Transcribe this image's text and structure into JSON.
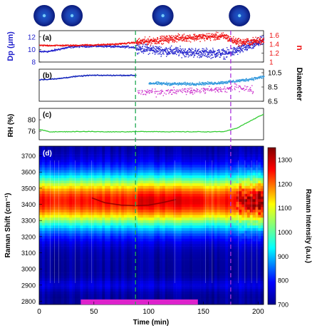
{
  "chart_data": [
    {
      "panel": "a",
      "type": "scatter",
      "panel_label": "(a)",
      "ylabel_left": "Dp (μm)",
      "ylabel_right": "n",
      "left_ticks": [
        "8",
        "10",
        "12"
      ],
      "right_ticks": [
        "1",
        "1.2",
        "1.4",
        "1.6"
      ],
      "ylim_left": [
        8,
        13
      ],
      "ylim_right": [
        1.0,
        1.7
      ],
      "series": [
        {
          "color": "#2222cc",
          "axis": "left",
          "x": [
            0,
            10,
            20,
            30,
            40,
            50,
            60,
            70,
            80,
            88,
            100,
            110,
            120,
            130,
            140,
            150,
            160,
            170,
            175,
            185,
            195,
            205
          ],
          "y": [
            9.7,
            9.8,
            10.2,
            10.5,
            10.6,
            10.6,
            10.6,
            10.5,
            10.5,
            10.4,
            10.1,
            9.9,
            9.8,
            9.7,
            9.6,
            9.5,
            9.5,
            9.4,
            9.6,
            10.2,
            10.8,
            11.5
          ]
        },
        {
          "color": "#ee1111",
          "axis": "right",
          "x": [
            0,
            10,
            20,
            30,
            40,
            50,
            60,
            70,
            80,
            88,
            100,
            110,
            120,
            130,
            140,
            150,
            160,
            170,
            175,
            185,
            195,
            205
          ],
          "y": [
            1.38,
            1.38,
            1.38,
            1.38,
            1.39,
            1.39,
            1.4,
            1.41,
            1.43,
            1.45,
            1.48,
            1.5,
            1.53,
            1.55,
            1.56,
            1.57,
            1.58,
            1.58,
            1.5,
            1.45,
            1.47,
            1.5
          ]
        }
      ]
    },
    {
      "panel": "b",
      "type": "scatter",
      "panel_label": "(b)",
      "ylabel_right": "Diameter",
      "right_ticks": [
        "6.5",
        "8.5",
        "10.5"
      ],
      "ylim_right": [
        6.5,
        11
      ],
      "series": [
        {
          "color": "#1122bb",
          "x": [
            0,
            15,
            30,
            45,
            60,
            75,
            88
          ],
          "y": [
            9.6,
            9.7,
            10.0,
            10.2,
            10.2,
            10.2,
            10.2
          ]
        },
        {
          "color": "#3399dd",
          "x": [
            100,
            120,
            140,
            160,
            175,
            190,
            205
          ],
          "y": [
            9.1,
            9.0,
            9.0,
            9.1,
            9.3,
            9.6,
            10.0
          ]
        },
        {
          "color": "#cc33cc",
          "x": [
            90,
            110,
            130,
            150,
            170,
            180,
            195
          ],
          "y": [
            7.8,
            7.8,
            8.0,
            8.1,
            8.2,
            8.6,
            8.2
          ]
        }
      ]
    },
    {
      "panel": "c",
      "type": "line",
      "panel_label": "(c)",
      "ylabel": "RH (%)",
      "ticks": [
        "76",
        "80"
      ],
      "ylim": [
        73,
        84
      ],
      "color": "#33cc33",
      "x": [
        0,
        10,
        20,
        40,
        60,
        80,
        100,
        120,
        140,
        160,
        170,
        180,
        190,
        200,
        205
      ],
      "y": [
        76.6,
        75.8,
        75.8,
        75.9,
        75.8,
        75.8,
        75.9,
        75.8,
        75.8,
        75.8,
        75.9,
        77.0,
        79.0,
        81.0,
        82.0
      ]
    },
    {
      "panel": "d",
      "type": "heatmap",
      "panel_label": "(d)",
      "ylabel": "Raman Shift (cm⁻¹)",
      "xlabel": "Time (min)",
      "colorbar_label": "Raman Intensity (a.u.)",
      "xlim": [
        0,
        205
      ],
      "ylim": [
        2780,
        3760
      ],
      "x_ticks": [
        0,
        50,
        100,
        150,
        200
      ],
      "y_ticks": [
        2800,
        2900,
        3000,
        3100,
        3200,
        3300,
        3400,
        3500,
        3600,
        3700
      ],
      "colorbar_ticks": [
        700,
        800,
        900,
        1000,
        1100,
        1200,
        1300
      ],
      "clim": [
        700,
        1350
      ],
      "colormap": "jet",
      "band_center_cm1": 3420,
      "band_width_cm1": 170,
      "mode_ridge": {
        "x": [
          48,
          60,
          75,
          88,
          100,
          112,
          125
        ],
        "y": [
          3440,
          3410,
          3395,
          3392,
          3395,
          3410,
          3430
        ]
      },
      "highlight_bar": {
        "x_start": 38,
        "x_end": 145,
        "color": "#dd22cc"
      }
    }
  ],
  "event_lines": [
    {
      "x": 88,
      "color": "#22aa55"
    },
    {
      "x": 175,
      "color": "#aa33dd"
    }
  ],
  "particle_images_at_min": [
    2,
    30,
    113,
    183
  ]
}
